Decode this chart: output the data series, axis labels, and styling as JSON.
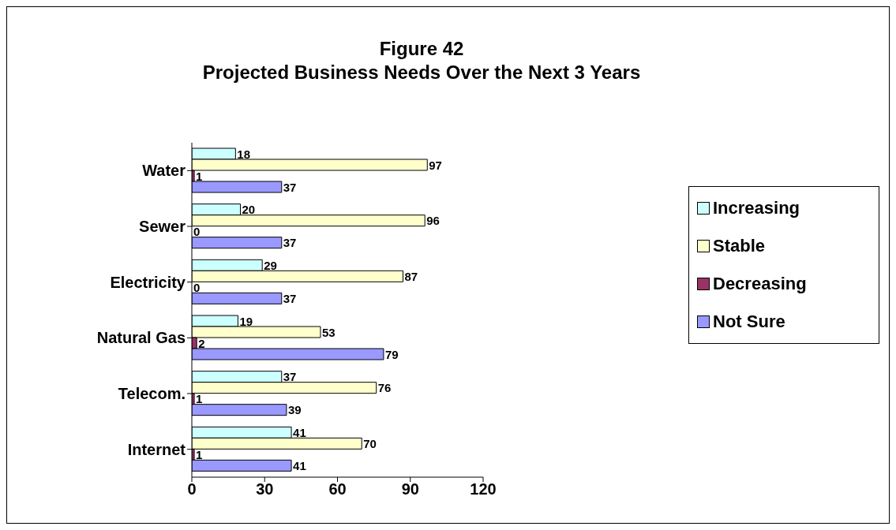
{
  "chart_data": {
    "type": "bar",
    "orientation": "horizontal",
    "title": "Figure 42\nProjected Business Needs Over the Next 3 Years",
    "categories": [
      "Water",
      "Sewer",
      "Electricity",
      "Natural Gas",
      "Telecom.",
      "Internet"
    ],
    "series": [
      {
        "name": "Increasing",
        "color": "#ccffff",
        "values": [
          18,
          20,
          29,
          19,
          37,
          41
        ]
      },
      {
        "name": "Stable",
        "color": "#ffffcc",
        "values": [
          97,
          96,
          87,
          53,
          76,
          70
        ]
      },
      {
        "name": "Decreasing",
        "color": "#993366",
        "values": [
          1,
          0,
          0,
          2,
          1,
          1
        ]
      },
      {
        "name": "Not Sure",
        "color": "#9999ff",
        "values": [
          37,
          37,
          37,
          79,
          39,
          41
        ]
      }
    ],
    "xlim": [
      0,
      120
    ],
    "xticks": [
      0,
      30,
      60,
      90,
      120
    ],
    "grid": false,
    "legend": "right",
    "data_labels": true
  }
}
